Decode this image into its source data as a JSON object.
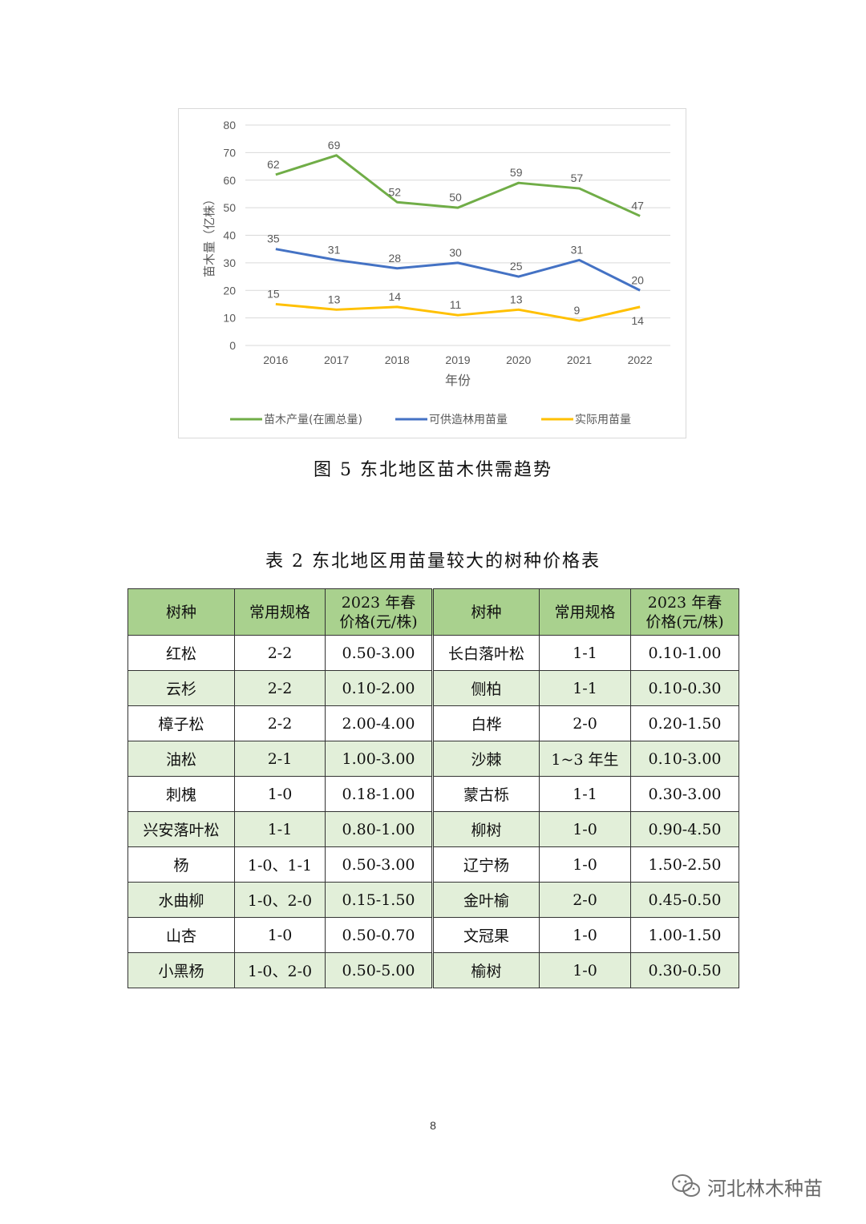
{
  "chart_data": {
    "type": "line",
    "x": [
      "2016",
      "2017",
      "2018",
      "2019",
      "2020",
      "2021",
      "2022"
    ],
    "series": [
      {
        "name": "苗木产量(在圃总量)",
        "color": "#70ad47",
        "values": [
          62,
          69,
          52,
          50,
          59,
          57,
          47
        ]
      },
      {
        "name": "可供造林用苗量",
        "color": "#4472c4",
        "values": [
          35,
          31,
          28,
          30,
          25,
          31,
          20
        ]
      },
      {
        "name": "实际用苗量",
        "color": "#ffc000",
        "values": [
          15,
          13,
          14,
          11,
          13,
          9,
          14
        ]
      }
    ],
    "xlabel": "年份",
    "ylabel": "苗木量（亿株）",
    "ylim": [
      0,
      80
    ],
    "yticks": [
      "0",
      "10",
      "20",
      "30",
      "40",
      "50",
      "60",
      "70",
      "80"
    ],
    "grid": true,
    "legend": "bottom"
  },
  "figure_caption": "图 5  东北地区苗木供需趋势",
  "table": {
    "title": "表 2  东北地区用苗量较大的树种价格表",
    "headers": [
      "树种",
      "常用规格",
      "2023 年春价格(元/株)",
      "树种",
      "常用规格",
      "2023 年春价格(元/株)"
    ],
    "header_price_line1": "2023 年春",
    "header_price_line2": "价格(元/株)",
    "rows": [
      [
        "红松",
        "2-2",
        "0.50-3.00",
        "长白落叶松",
        "1-1",
        "0.10-1.00"
      ],
      [
        "云杉",
        "2-2",
        "0.10-2.00",
        "侧柏",
        "1-1",
        "0.10-0.30"
      ],
      [
        "樟子松",
        "2-2",
        "2.00-4.00",
        "白桦",
        "2-0",
        "0.20-1.50"
      ],
      [
        "油松",
        "2-1",
        "1.00-3.00",
        "沙棘",
        "1~3 年生",
        "0.10-3.00"
      ],
      [
        "刺槐",
        "1-0",
        "0.18-1.00",
        "蒙古栎",
        "1-1",
        "0.30-3.00"
      ],
      [
        "兴安落叶松",
        "1-1",
        "0.80-1.00",
        "柳树",
        "1-0",
        "0.90-4.50"
      ],
      [
        "杨",
        "1-0、1-1",
        "0.50-3.00",
        "辽宁杨",
        "1-0",
        "1.50-2.50"
      ],
      [
        "水曲柳",
        "1-0、2-0",
        "0.15-1.50",
        "金叶榆",
        "2-0",
        "0.45-0.50"
      ],
      [
        "山杏",
        "1-0",
        "0.50-0.70",
        "文冠果",
        "1-0",
        "1.00-1.50"
      ],
      [
        "小黑杨",
        "1-0、2-0",
        "0.50-5.00",
        "榆树",
        "1-0",
        "0.30-0.50"
      ]
    ]
  },
  "page_number": "8",
  "watermark": {
    "text": "河北林木种苗",
    "icon": "wechat-icon"
  }
}
